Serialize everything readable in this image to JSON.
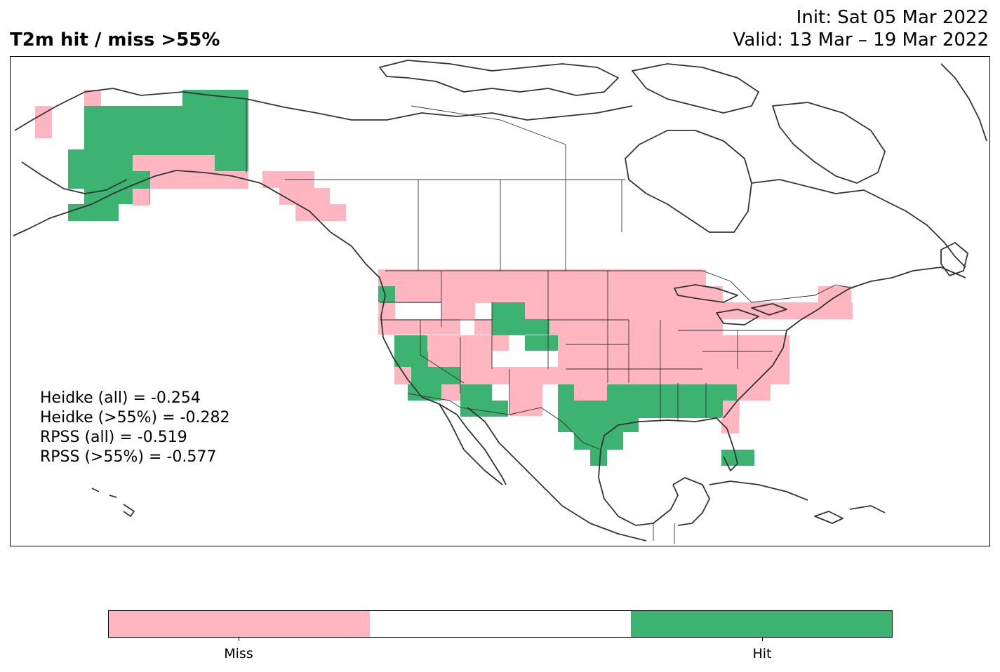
{
  "header": {
    "title": "T2m hit / miss  >55%",
    "init": "Init: Sat 05 Mar 2022",
    "valid": "Valid: 13 Mar – 19 Mar 2022"
  },
  "scores": [
    "Heidke (all) = -0.254",
    "Heidke (>55%) = -0.282",
    "RPSS (all) = -0.519",
    "RPSS (>55%) = -0.577"
  ],
  "colors": {
    "miss": "#ffb6c1",
    "neutral": "#ffffff",
    "hit": "#3cb371",
    "coast": "#333333"
  },
  "legend": {
    "miss_label": "Miss",
    "hit_label": "Hit"
  }
}
